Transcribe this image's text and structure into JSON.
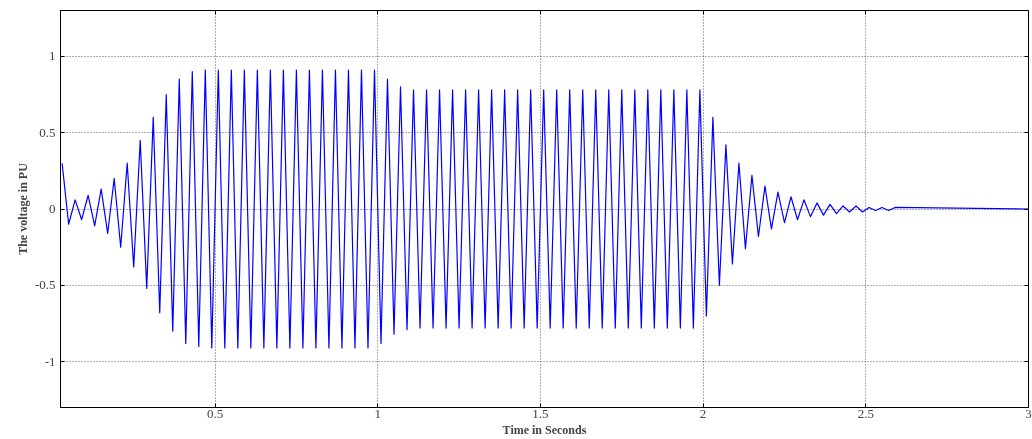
{
  "chart_data": {
    "type": "line",
    "xlabel": "Time in Seconds",
    "ylabel": "The voltage in PU",
    "xlim": [
      0.025,
      3
    ],
    "ylim": [
      -1.3,
      1.3
    ],
    "xticks": [
      0.5,
      1,
      1.5,
      2,
      2.5,
      3
    ],
    "yticks": [
      -1,
      -0.5,
      0,
      0.5,
      1
    ],
    "grid": true,
    "series": [
      {
        "color": "#0000ff",
        "x": [
          0.03,
          0.05,
          0.07,
          0.09,
          0.11,
          0.13,
          0.15,
          0.17,
          0.19,
          0.21,
          0.23,
          0.25,
          0.27,
          0.29,
          0.31,
          0.33,
          0.35,
          0.37,
          0.39,
          0.41,
          0.43,
          0.45,
          0.47,
          0.49,
          0.51,
          0.53,
          0.55,
          0.57,
          0.59,
          0.61,
          0.63,
          0.65,
          0.67,
          0.69,
          0.71,
          0.73,
          0.75,
          0.77,
          0.79,
          0.81,
          0.83,
          0.85,
          0.87,
          0.89,
          0.91,
          0.93,
          0.95,
          0.97,
          0.99,
          1.01,
          1.03,
          1.05,
          1.07,
          1.09,
          1.11,
          1.13,
          1.15,
          1.17,
          1.19,
          1.21,
          1.23,
          1.25,
          1.27,
          1.29,
          1.31,
          1.33,
          1.35,
          1.37,
          1.39,
          1.41,
          1.43,
          1.45,
          1.47,
          1.49,
          1.51,
          1.53,
          1.55,
          1.57,
          1.59,
          1.61,
          1.63,
          1.65,
          1.67,
          1.69,
          1.71,
          1.73,
          1.75,
          1.77,
          1.79,
          1.81,
          1.83,
          1.85,
          1.87,
          1.89,
          1.91,
          1.93,
          1.95,
          1.97,
          1.99,
          2.01,
          2.03,
          2.05,
          2.07,
          2.09,
          2.11,
          2.13,
          2.15,
          2.17,
          2.19,
          2.21,
          2.23,
          2.25,
          2.27,
          2.29,
          2.31,
          2.33,
          2.35,
          2.37,
          2.39,
          2.41,
          2.43,
          2.45,
          2.47,
          2.49,
          2.51,
          2.53,
          2.55,
          2.57,
          2.59,
          3.0
        ],
        "values": [
          0.3,
          -0.1,
          0.06,
          -0.07,
          0.09,
          -0.11,
          0.13,
          -0.16,
          0.2,
          -0.25,
          0.3,
          -0.38,
          0.45,
          -0.52,
          0.6,
          -0.68,
          0.75,
          -0.8,
          0.85,
          -0.88,
          0.9,
          -0.9,
          0.91,
          -0.91,
          0.91,
          -0.91,
          0.91,
          -0.91,
          0.91,
          -0.91,
          0.91,
          -0.91,
          0.91,
          -0.91,
          0.91,
          -0.91,
          0.91,
          -0.91,
          0.91,
          -0.91,
          0.91,
          -0.91,
          0.91,
          -0.91,
          0.91,
          -0.91,
          0.91,
          -0.91,
          0.91,
          -0.88,
          0.85,
          -0.82,
          0.8,
          -0.79,
          0.78,
          -0.78,
          0.78,
          -0.78,
          0.78,
          -0.78,
          0.78,
          -0.78,
          0.78,
          -0.78,
          0.78,
          -0.78,
          0.78,
          -0.78,
          0.78,
          -0.78,
          0.78,
          -0.78,
          0.78,
          -0.78,
          0.78,
          -0.78,
          0.78,
          -0.78,
          0.78,
          -0.78,
          0.78,
          -0.78,
          0.78,
          -0.78,
          0.78,
          -0.78,
          0.78,
          -0.78,
          0.78,
          -0.78,
          0.78,
          -0.78,
          0.78,
          -0.78,
          0.78,
          -0.78,
          0.78,
          -0.78,
          0.78,
          -0.7,
          0.6,
          -0.5,
          0.42,
          -0.36,
          0.3,
          -0.26,
          0.22,
          -0.18,
          0.15,
          -0.13,
          0.11,
          -0.09,
          0.08,
          -0.07,
          0.06,
          -0.05,
          0.04,
          -0.04,
          0.03,
          -0.03,
          0.02,
          -0.02,
          0.02,
          -0.02,
          0.01,
          -0.01,
          0.01,
          -0.01,
          0.01,
          0
        ]
      }
    ]
  }
}
